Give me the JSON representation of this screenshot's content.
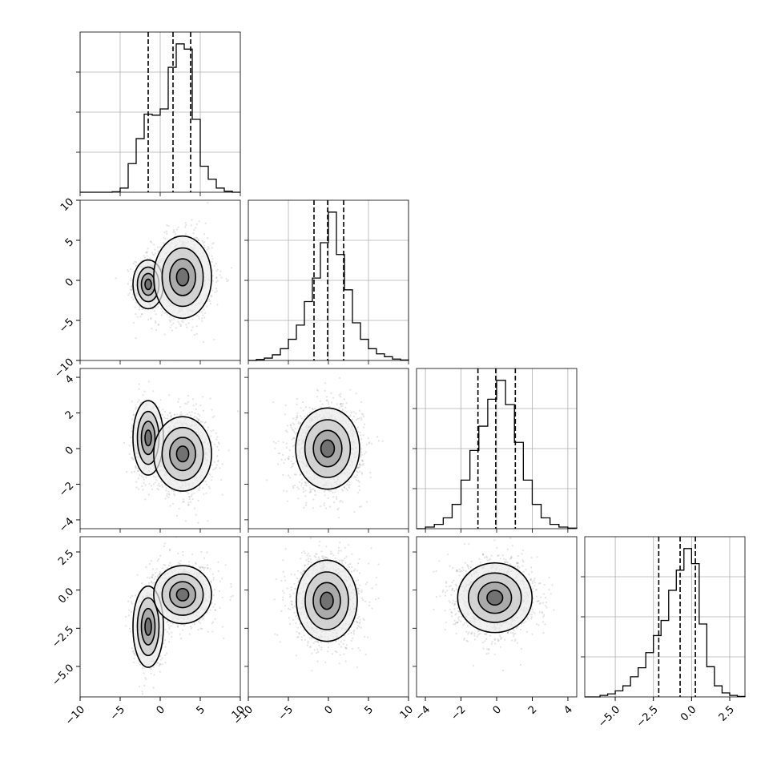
{
  "chart_data": {
    "type": "corner",
    "parameters": [
      {
        "index": 0,
        "range": [
          -10,
          10
        ],
        "ticks": [
          -10,
          -5,
          0,
          5,
          10
        ],
        "tick_labels": [
          "−10",
          "−5",
          "0",
          "5",
          "10"
        ],
        "quantiles": [
          -1.5,
          1.6,
          3.8
        ],
        "hist_bin_edges": [
          -10,
          -9,
          -8,
          -7,
          -6,
          -5,
          -4,
          -3,
          -2,
          -1,
          0,
          1,
          2,
          3,
          4,
          5,
          6,
          7,
          8,
          9,
          10
        ],
        "hist_counts": [
          0,
          0,
          0,
          0,
          1,
          8,
          55,
          103,
          150,
          148,
          160,
          240,
          285,
          275,
          140,
          50,
          25,
          8,
          2,
          0
        ]
      },
      {
        "index": 1,
        "range": [
          -10,
          10
        ],
        "ticks": [
          -10,
          -5,
          0,
          5,
          10
        ],
        "tick_labels": [
          "−10",
          "−5",
          "0",
          "5",
          "10"
        ],
        "quantiles": [
          -1.8,
          -0.1,
          1.9
        ],
        "hist_bin_edges": [
          -10,
          -9,
          -8,
          -7,
          -6,
          -5,
          -4,
          -3,
          -2,
          -1,
          0,
          1,
          2,
          3,
          4,
          5,
          6,
          7,
          8,
          9,
          10
        ],
        "hist_counts": [
          0,
          2,
          5,
          12,
          25,
          45,
          75,
          125,
          175,
          250,
          315,
          225,
          150,
          80,
          45,
          25,
          14,
          8,
          3,
          1
        ]
      },
      {
        "index": 2,
        "range": [
          -4.5,
          4.5
        ],
        "ticks": [
          -4,
          -2,
          0,
          2,
          4
        ],
        "tick_labels": [
          "−4",
          "−2",
          "0",
          "2",
          "4"
        ],
        "quantiles": [
          -1.05,
          -0.05,
          1.05
        ],
        "hist_bin_edges": [
          -4.5,
          -4.0,
          -3.5,
          -3.0,
          -2.5,
          -2.0,
          -1.5,
          -1.0,
          -0.5,
          0.0,
          0.5,
          1.0,
          1.5,
          2.0,
          2.5,
          3.0,
          3.5,
          4.0,
          4.5
        ],
        "hist_counts": [
          0,
          3,
          8,
          20,
          45,
          90,
          145,
          190,
          240,
          275,
          230,
          160,
          90,
          45,
          20,
          8,
          3,
          1
        ]
      },
      {
        "index": 3,
        "range": [
          -7,
          3.5
        ],
        "ticks": [
          -5.0,
          -2.5,
          0.0,
          2.5
        ],
        "tick_labels": [
          "−5.0",
          "−2.5",
          "0.0",
          "2.5"
        ],
        "quantiles": [
          -2.15,
          -0.75,
          0.25
        ],
        "hist_bin_edges": [
          -7.0,
          -6.5,
          -6.0,
          -5.5,
          -5.0,
          -4.5,
          -4.0,
          -3.5,
          -3.0,
          -2.5,
          -2.0,
          -1.5,
          -1.0,
          -0.5,
          0.0,
          0.5,
          1.0,
          1.5,
          2.0,
          2.5,
          3.0,
          3.5
        ],
        "hist_counts": [
          0,
          0,
          3,
          6,
          12,
          22,
          40,
          58,
          88,
          122,
          152,
          212,
          252,
          295,
          265,
          145,
          60,
          22,
          8,
          3,
          1
        ]
      }
    ],
    "pairs": [
      {
        "row": 1,
        "col": 0,
        "clusters": [
          {
            "mean": [
              -1.5,
              -0.5
            ],
            "sd": [
              1.0,
              1.6
            ],
            "weight": 0.32
          },
          {
            "mean": [
              2.8,
              0.4
            ],
            "sd": [
              1.9,
              2.7
            ],
            "weight": 0.68
          }
        ]
      },
      {
        "row": 2,
        "col": 0,
        "clusters": [
          {
            "mean": [
              -1.5,
              0.6
            ],
            "sd": [
              1.0,
              1.1
            ],
            "weight": 0.32
          },
          {
            "mean": [
              2.8,
              -0.3
            ],
            "sd": [
              1.9,
              1.1
            ],
            "weight": 0.68
          }
        ]
      },
      {
        "row": 2,
        "col": 1,
        "clusters": [
          {
            "mean": [
              -0.1,
              0.0
            ],
            "sd": [
              2.1,
              1.2
            ],
            "weight": 1.0
          }
        ]
      },
      {
        "row": 3,
        "col": 0,
        "clusters": [
          {
            "mean": [
              -1.5,
              -2.4
            ],
            "sd": [
              1.0,
              1.4
            ],
            "weight": 0.32
          },
          {
            "mean": [
              2.8,
              -0.3
            ],
            "sd": [
              1.9,
              1.0
            ],
            "weight": 0.68
          }
        ]
      },
      {
        "row": 3,
        "col": 1,
        "clusters": [
          {
            "mean": [
              -0.2,
              -0.7
            ],
            "sd": [
              2.0,
              1.4
            ],
            "weight": 1.0
          }
        ]
      },
      {
        "row": 3,
        "col": 2,
        "clusters": [
          {
            "mean": [
              -0.1,
              -0.5
            ],
            "sd": [
              1.1,
              1.2
            ],
            "weight": 1.0
          }
        ]
      }
    ],
    "grid": true
  }
}
